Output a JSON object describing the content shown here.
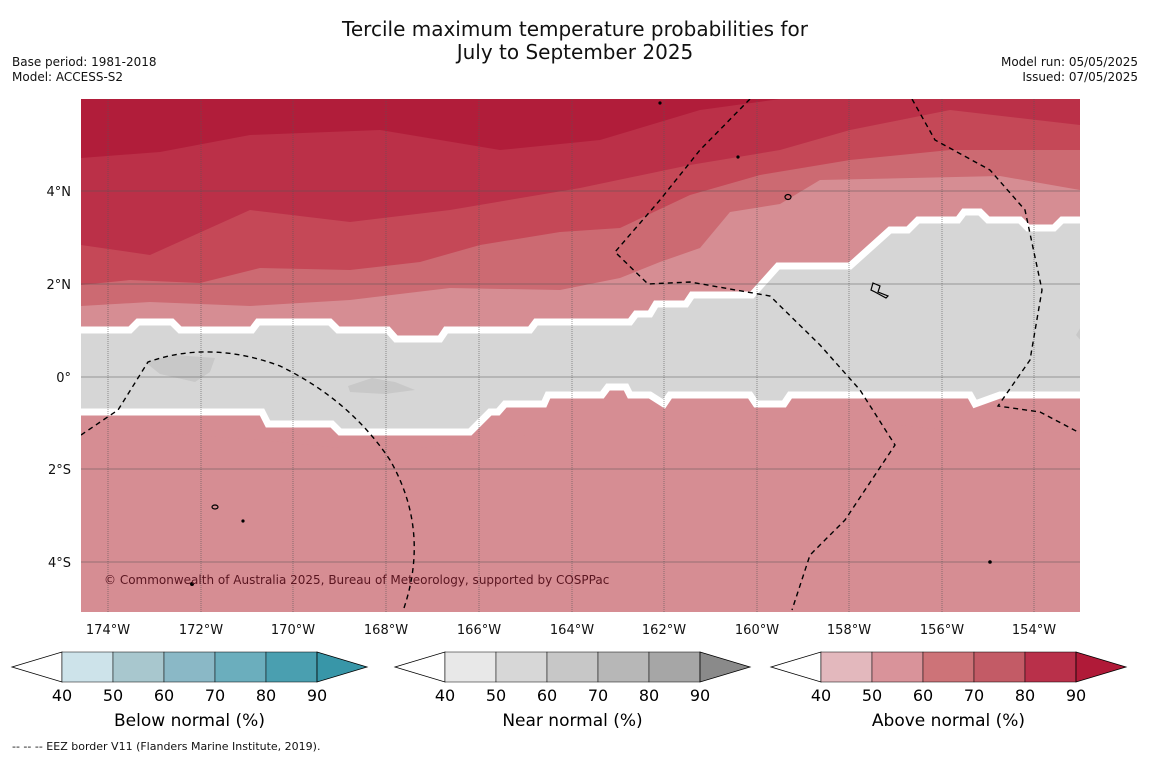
{
  "title_line1": "Tercile maximum temperature probabilities for",
  "title_line2": "July to September 2025",
  "base_period": "Base period: 1981-2018",
  "model": "Model: ACCESS-S2",
  "model_run": "Model run: 05/05/2025",
  "issued": "Issued: 07/05/2025",
  "copyright": "© Commonwealth of Australia 2025, Bureau of Meteorology, supported by COSPPac",
  "lon_labels": [
    "174°W",
    "172°W",
    "170°W",
    "168°W",
    "166°W",
    "164°W",
    "162°W",
    "160°W",
    "158°W",
    "156°W",
    "154°W"
  ],
  "lat_labels": [
    "4°N",
    "2°N",
    "0°",
    "2°S",
    "4°S"
  ],
  "map_colors": {
    "sea_base": "#b11d3a",
    "above_80": "#bb3048",
    "above_70": "#c54857",
    "above_60": "#cc6a72",
    "above_50": "#d68d93",
    "near": "#d6d6d6",
    "near_60": "#c8c8c8"
  },
  "legends": [
    {
      "title": "Below normal (%)",
      "ticks": [
        "40",
        "50",
        "60",
        "70",
        "80",
        "90"
      ],
      "colors": [
        "#cde3ea",
        "#a8c7ce",
        "#8ab8c6",
        "#6baebd",
        "#4a9fb0",
        "#3896a8"
      ]
    },
    {
      "title": "Near normal (%)",
      "ticks": [
        "40",
        "50",
        "60",
        "70",
        "80",
        "90"
      ],
      "colors": [
        "#e8e8e8",
        "#d7d7d7",
        "#c7c7c7",
        "#b7b7b7",
        "#a6a6a6",
        "#8a8a8a"
      ]
    },
    {
      "title": "Above normal (%)",
      "ticks": [
        "40",
        "50",
        "60",
        "70",
        "80",
        "90"
      ],
      "colors": [
        "#e3b8bd",
        "#d9939a",
        "#cd7378",
        "#c35b66",
        "#b9304a",
        "#b01a38"
      ]
    }
  ],
  "footnote": "--  --  -- EEZ border V11 (Flanders Marine Institute, 2019)."
}
